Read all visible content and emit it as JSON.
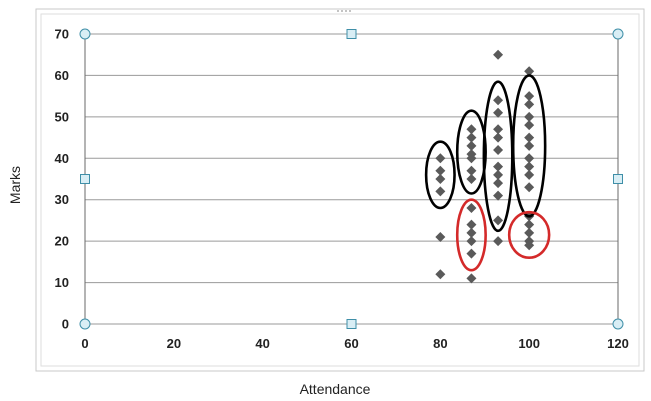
{
  "chart_data": {
    "type": "scatter",
    "title": "",
    "xlabel": "Attendance",
    "ylabel": "Marks",
    "xlim": [
      0,
      120
    ],
    "ylim": [
      0,
      70
    ],
    "xticks": [
      0,
      20,
      40,
      60,
      80,
      100,
      120
    ],
    "yticks": [
      0,
      10,
      20,
      30,
      40,
      50,
      60,
      70
    ],
    "grid": "horizontal",
    "legend": "none",
    "marker": "diamond",
    "colors": {
      "marker": "#5a5a5a",
      "grid": "#9a9a9a",
      "cluster_black": "#000000",
      "cluster_red": "#d42a2a",
      "selection_handle": "#3f8fa8",
      "handle_fill": "#d9eef5"
    },
    "series": [
      {
        "points": [
          {
            "x": 80,
            "y": 40
          },
          {
            "x": 80,
            "y": 37
          },
          {
            "x": 80,
            "y": 35
          },
          {
            "x": 80,
            "y": 32
          },
          {
            "x": 80,
            "y": 21
          },
          {
            "x": 80,
            "y": 12
          },
          {
            "x": 87,
            "y": 47
          },
          {
            "x": 87,
            "y": 45
          },
          {
            "x": 87,
            "y": 43
          },
          {
            "x": 87,
            "y": 41
          },
          {
            "x": 87,
            "y": 40
          },
          {
            "x": 87,
            "y": 37
          },
          {
            "x": 87,
            "y": 35
          },
          {
            "x": 87,
            "y": 28
          },
          {
            "x": 87,
            "y": 24
          },
          {
            "x": 87,
            "y": 22
          },
          {
            "x": 87,
            "y": 20
          },
          {
            "x": 87,
            "y": 17
          },
          {
            "x": 87,
            "y": 11
          },
          {
            "x": 93,
            "y": 65
          },
          {
            "x": 93,
            "y": 54
          },
          {
            "x": 93,
            "y": 51
          },
          {
            "x": 93,
            "y": 47
          },
          {
            "x": 93,
            "y": 45
          },
          {
            "x": 93,
            "y": 42
          },
          {
            "x": 93,
            "y": 38
          },
          {
            "x": 93,
            "y": 36
          },
          {
            "x": 93,
            "y": 34
          },
          {
            "x": 93,
            "y": 31
          },
          {
            "x": 93,
            "y": 25
          },
          {
            "x": 93,
            "y": 20
          },
          {
            "x": 100,
            "y": 61
          },
          {
            "x": 100,
            "y": 55
          },
          {
            "x": 100,
            "y": 53
          },
          {
            "x": 100,
            "y": 50
          },
          {
            "x": 100,
            "y": 48
          },
          {
            "x": 100,
            "y": 45
          },
          {
            "x": 100,
            "y": 43
          },
          {
            "x": 100,
            "y": 40
          },
          {
            "x": 100,
            "y": 38
          },
          {
            "x": 100,
            "y": 36
          },
          {
            "x": 100,
            "y": 33
          },
          {
            "x": 100,
            "y": 26
          },
          {
            "x": 100,
            "y": 24
          },
          {
            "x": 100,
            "y": 22
          },
          {
            "x": 100,
            "y": 20
          },
          {
            "x": 100,
            "y": 19
          }
        ]
      }
    ],
    "annotations": [
      {
        "shape": "ellipse",
        "color": "black",
        "cx": 80,
        "cy": 36,
        "rx": 3.2,
        "ry": 8
      },
      {
        "shape": "ellipse",
        "color": "black",
        "cx": 87,
        "cy": 41.5,
        "rx": 3.2,
        "ry": 10
      },
      {
        "shape": "ellipse",
        "color": "black",
        "cx": 93,
        "cy": 40.5,
        "rx": 3.2,
        "ry": 18
      },
      {
        "shape": "ellipse",
        "color": "black",
        "cx": 100,
        "cy": 43,
        "rx": 3.6,
        "ry": 17
      },
      {
        "shape": "ellipse",
        "color": "red",
        "cx": 87,
        "cy": 21.5,
        "rx": 3.2,
        "ry": 8.5
      },
      {
        "shape": "ellipse",
        "color": "red",
        "cx": 100,
        "cy": 21.5,
        "rx": 4.5,
        "ry": 5.5
      }
    ]
  }
}
